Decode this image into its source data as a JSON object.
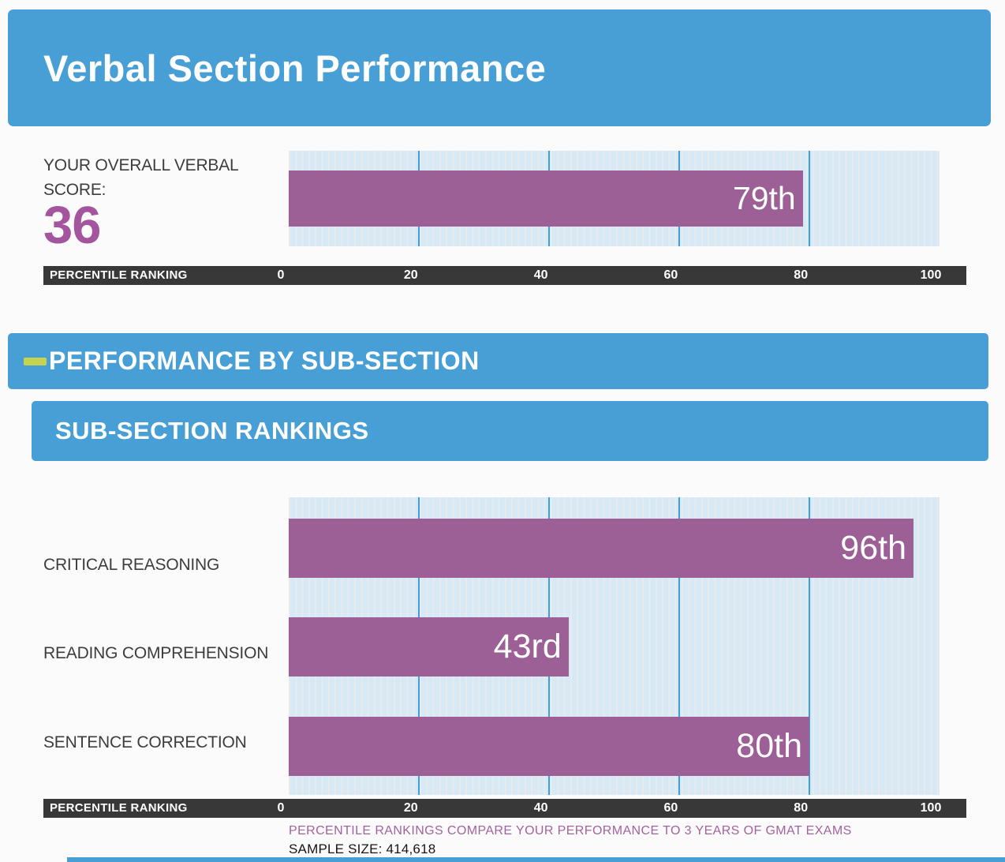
{
  "colors": {
    "banner_blue": "#479fd6",
    "bar_purple": "#9d6096",
    "score_purple": "#a3569d",
    "footer_purple": "#a4619f",
    "axis_dark": "#383838",
    "dash_green": "#c5d44e",
    "gridline_blue": "#3e9fd9",
    "plot_bg": "#d6e9f5"
  },
  "header": {
    "title": "Verbal Section Performance"
  },
  "overall": {
    "label": "YOUR OVERALL VERBAL SCORE:",
    "score": "36",
    "bar_label": "79th",
    "value": 79
  },
  "axis": {
    "label": "PERCENTILE RANKING",
    "ticks": [
      {
        "label": "0",
        "value": 0
      },
      {
        "label": "20",
        "value": 20
      },
      {
        "label": "40",
        "value": 40
      },
      {
        "label": "60",
        "value": 60
      },
      {
        "label": "80",
        "value": 80
      },
      {
        "label": "100",
        "value": 100
      }
    ],
    "gridlines": [
      20,
      40,
      60,
      80
    ]
  },
  "banners": {
    "subsection": "PERFORMANCE BY SUB-SECTION",
    "rankings": "SUB-SECTION RANKINGS"
  },
  "subsections": [
    {
      "name": "CRITICAL REASONING",
      "bar_label": "96th",
      "value": 96
    },
    {
      "name": "READING COMPREHENSION",
      "bar_label": "43rd",
      "value": 43
    },
    {
      "name": "SENTENCE CORRECTION",
      "bar_label": "80th",
      "value": 80
    }
  ],
  "footer": {
    "note": "PERCENTILE RANKINGS COMPARE YOUR PERFORMANCE TO 3 YEARS OF GMAT EXAMS",
    "sample_size": "SAMPLE SIZE: 414,618"
  },
  "chart_data": [
    {
      "type": "bar",
      "orientation": "horizontal",
      "title": "YOUR OVERALL VERBAL SCORE: 36",
      "categories": [
        "OVERALL VERBAL"
      ],
      "values": [
        79
      ],
      "value_labels": [
        "79th"
      ],
      "xlabel": "PERCENTILE RANKING",
      "xlim": [
        0,
        100
      ],
      "xticks": [
        0,
        20,
        40,
        60,
        80,
        100
      ],
      "grid": true,
      "bar_color": "#9d6096",
      "legend": false
    },
    {
      "type": "bar",
      "orientation": "horizontal",
      "title": "SUB-SECTION RANKINGS",
      "categories": [
        "CRITICAL REASONING",
        "READING COMPREHENSION",
        "SENTENCE CORRECTION"
      ],
      "values": [
        96,
        43,
        80
      ],
      "value_labels": [
        "96th",
        "43rd",
        "80th"
      ],
      "xlabel": "PERCENTILE RANKING",
      "xlim": [
        0,
        100
      ],
      "xticks": [
        0,
        20,
        40,
        60,
        80,
        100
      ],
      "grid": true,
      "bar_color": "#9d6096",
      "legend": false,
      "footnote": "PERCENTILE RANKINGS COMPARE YOUR PERFORMANCE TO 3 YEARS OF GMAT EXAMS",
      "sample_size": 414618
    }
  ]
}
